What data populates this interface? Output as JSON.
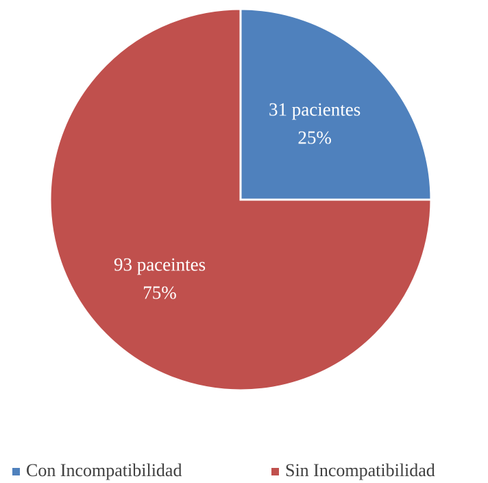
{
  "chart_data": {
    "type": "pie",
    "categories": [
      "Con Incompatibilidad",
      "Sin Incompatibilidad"
    ],
    "values": [
      31,
      93
    ],
    "value_labels": [
      [
        "31 pacientes",
        "25%"
      ],
      [
        "93 paceintes",
        "75%"
      ]
    ],
    "colors": [
      "#4f81bd",
      "#c0504d"
    ],
    "legend": "bottom"
  }
}
